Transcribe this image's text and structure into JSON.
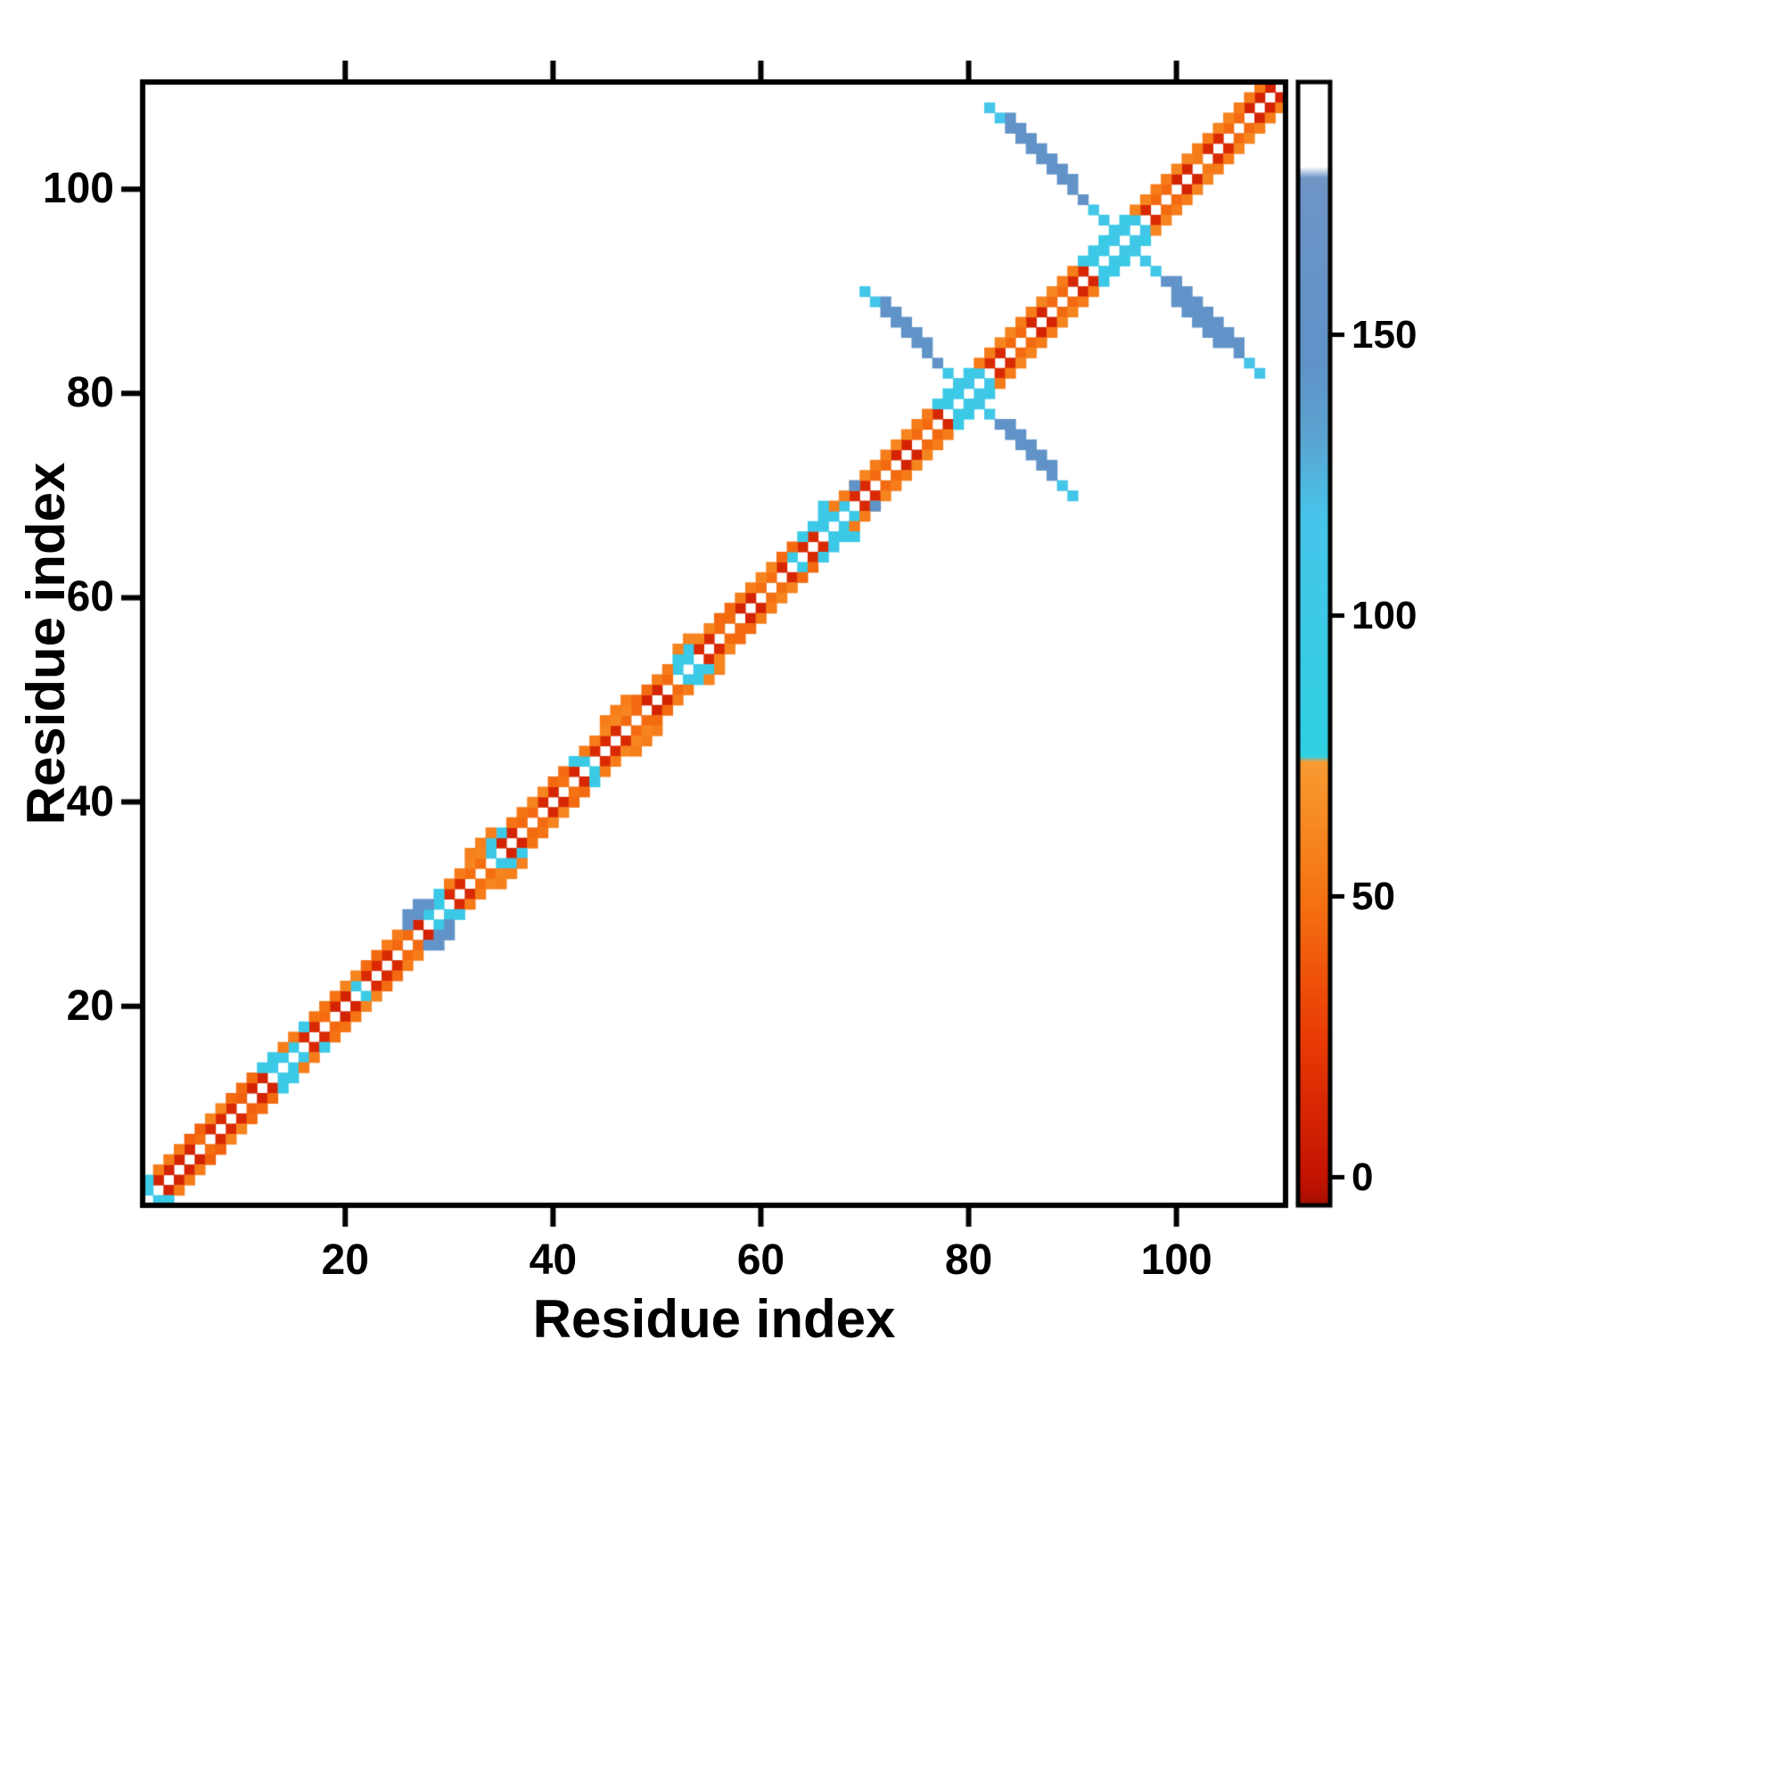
{
  "chart_data": {
    "type": "heatmap",
    "title": "",
    "xlabel": "Residue index",
    "ylabel": "Residue index",
    "n_residues": 110,
    "x_range": [
      0.5,
      110.5
    ],
    "y_range": [
      0.5,
      110.5
    ],
    "x_ticks": [
      20,
      40,
      60,
      80,
      100
    ],
    "y_ticks": [
      20,
      40,
      60,
      80,
      100
    ],
    "grid": false,
    "background": "#ffffff",
    "frame_color": "#000000",
    "colorbar": {
      "position": "right",
      "range": [
        -5,
        195
      ],
      "ticks": [
        0,
        50,
        100,
        150
      ],
      "stops": [
        [
          -5,
          "#a50f01"
        ],
        [
          0,
          "#c41301"
        ],
        [
          25,
          "#ea3b05"
        ],
        [
          50,
          "#f57312"
        ],
        [
          74,
          "#f89b32"
        ],
        [
          75,
          "#2fd0e2"
        ],
        [
          118,
          "#46c4ea"
        ],
        [
          132,
          "#5ba3d0"
        ],
        [
          145,
          "#5f93c8"
        ],
        [
          178,
          "#6f94c6"
        ],
        [
          180,
          "#ffffff"
        ],
        [
          195,
          "#ffffff"
        ]
      ]
    },
    "cells": {
      "comment": "diag: [i0,i1,offset,value] cells (i,i+offset) mirrored; anti: [sum,i0,i1,value] cells (i,sum-i); points: [i,j,value]; diagonal i==j is NA/white",
      "diag": [
        [
          1,
          1,
          1,
          105
        ],
        [
          2,
          5,
          1,
          10
        ],
        [
          6,
          6,
          1,
          48
        ],
        [
          7,
          9,
          1,
          14
        ],
        [
          10,
          10,
          1,
          42
        ],
        [
          11,
          12,
          1,
          10
        ],
        [
          13,
          15,
          1,
          100
        ],
        [
          16,
          17,
          1,
          14
        ],
        [
          18,
          18,
          1,
          46
        ],
        [
          19,
          20,
          1,
          10
        ],
        [
          21,
          21,
          1,
          98
        ],
        [
          22,
          24,
          1,
          14
        ],
        [
          25,
          26,
          1,
          46
        ],
        [
          27,
          27,
          1,
          10
        ],
        [
          28,
          29,
          1,
          96
        ],
        [
          30,
          31,
          1,
          14
        ],
        [
          32,
          33,
          1,
          48
        ],
        [
          34,
          34,
          1,
          100
        ],
        [
          35,
          36,
          1,
          10
        ],
        [
          37,
          38,
          1,
          46
        ],
        [
          39,
          40,
          1,
          12
        ],
        [
          41,
          41,
          1,
          50
        ],
        [
          42,
          42,
          1,
          12
        ],
        [
          43,
          43,
          1,
          96
        ],
        [
          44,
          46,
          1,
          14
        ],
        [
          47,
          48,
          1,
          46
        ],
        [
          49,
          50,
          1,
          10
        ],
        [
          51,
          51,
          1,
          46
        ],
        [
          52,
          53,
          1,
          100
        ],
        [
          54,
          55,
          1,
          14
        ],
        [
          56,
          57,
          1,
          46
        ],
        [
          58,
          59,
          1,
          10
        ],
        [
          60,
          61,
          1,
          48
        ],
        [
          62,
          62,
          1,
          12
        ],
        [
          63,
          63,
          1,
          96
        ],
        [
          64,
          65,
          1,
          14
        ],
        [
          66,
          68,
          1,
          100
        ],
        [
          69,
          70,
          1,
          14
        ],
        [
          71,
          72,
          1,
          46
        ],
        [
          73,
          74,
          1,
          10
        ],
        [
          75,
          76,
          1,
          46
        ],
        [
          77,
          77,
          1,
          12
        ],
        [
          78,
          79,
          1,
          100
        ],
        [
          80,
          81,
          1,
          106
        ],
        [
          82,
          83,
          1,
          14
        ],
        [
          84,
          85,
          1,
          46
        ],
        [
          86,
          87,
          1,
          10
        ],
        [
          88,
          89,
          1,
          46
        ],
        [
          90,
          91,
          1,
          12
        ],
        [
          92,
          93,
          1,
          100
        ],
        [
          94,
          96,
          1,
          106
        ],
        [
          97,
          97,
          1,
          14
        ],
        [
          98,
          99,
          1,
          46
        ],
        [
          100,
          101,
          1,
          10
        ],
        [
          102,
          102,
          1,
          55
        ],
        [
          103,
          104,
          1,
          14
        ],
        [
          105,
          106,
          1,
          46
        ],
        [
          107,
          109,
          1,
          10
        ],
        [
          1,
          1,
          2,
          95
        ],
        [
          2,
          4,
          2,
          55
        ],
        [
          5,
          6,
          2,
          42
        ],
        [
          7,
          8,
          2,
          60
        ],
        [
          9,
          11,
          2,
          46
        ],
        [
          12,
          13,
          2,
          95
        ],
        [
          14,
          15,
          2,
          55
        ],
        [
          16,
          16,
          2,
          100
        ],
        [
          17,
          19,
          2,
          50
        ],
        [
          20,
          21,
          2,
          60
        ],
        [
          22,
          23,
          2,
          46
        ],
        [
          24,
          25,
          2,
          55
        ],
        [
          26,
          28,
          2,
          152
        ],
        [
          29,
          29,
          2,
          100
        ],
        [
          30,
          31,
          2,
          55
        ],
        [
          32,
          33,
          2,
          60
        ],
        [
          34,
          35,
          2,
          100
        ],
        [
          36,
          37,
          2,
          50
        ],
        [
          38,
          39,
          2,
          60
        ],
        [
          40,
          41,
          2,
          46
        ],
        [
          42,
          42,
          2,
          95
        ],
        [
          43,
          44,
          2,
          55
        ],
        [
          45,
          47,
          2,
          60
        ],
        [
          48,
          49,
          2,
          46
        ],
        [
          50,
          51,
          2,
          55
        ],
        [
          52,
          53,
          2,
          95
        ],
        [
          54,
          55,
          2,
          60
        ],
        [
          56,
          57,
          2,
          46
        ],
        [
          58,
          59,
          2,
          55
        ],
        [
          60,
          61,
          2,
          60
        ],
        [
          62,
          63,
          2,
          46
        ],
        [
          64,
          64,
          2,
          95
        ],
        [
          65,
          66,
          2,
          100
        ],
        [
          67,
          68,
          2,
          55
        ],
        [
          69,
          70,
          2,
          60
        ],
        [
          71,
          72,
          2,
          55
        ],
        [
          73,
          74,
          2,
          60
        ],
        [
          75,
          76,
          2,
          55
        ],
        [
          77,
          78,
          2,
          95
        ],
        [
          79,
          80,
          2,
          100
        ],
        [
          81,
          82,
          2,
          55
        ],
        [
          83,
          84,
          2,
          60
        ],
        [
          85,
          86,
          2,
          55
        ],
        [
          87,
          88,
          2,
          60
        ],
        [
          89,
          90,
          2,
          55
        ],
        [
          91,
          92,
          2,
          100
        ],
        [
          93,
          95,
          2,
          96
        ],
        [
          96,
          97,
          2,
          60
        ],
        [
          98,
          99,
          2,
          55
        ],
        [
          100,
          101,
          2,
          60
        ],
        [
          102,
          103,
          2,
          55
        ],
        [
          104,
          105,
          2,
          60
        ],
        [
          106,
          108,
          2,
          55
        ],
        [
          26,
          27,
          3,
          152
        ],
        [
          32,
          34,
          3,
          58
        ],
        [
          45,
          47,
          3,
          56
        ],
        [
          52,
          53,
          3,
          60
        ],
        [
          66,
          66,
          3,
          100
        ]
      ],
      "anti": [
        [
          160,
          70,
          71,
          110
        ],
        [
          160,
          72,
          77,
          150
        ],
        [
          160,
          78,
          82,
          106
        ],
        [
          160,
          83,
          88,
          150
        ],
        [
          160,
          89,
          90,
          110
        ],
        [
          161,
          72,
          76,
          148
        ],
        [
          161,
          84,
          88,
          148
        ],
        [
          190,
          82,
          83,
          116
        ],
        [
          190,
          84,
          91,
          152
        ],
        [
          190,
          92,
          98,
          108
        ],
        [
          190,
          99,
          106,
          152
        ],
        [
          190,
          107,
          108,
          118
        ],
        [
          191,
          84,
          90,
          150
        ],
        [
          191,
          100,
          106,
          150
        ],
        [
          189,
          100,
          104,
          152
        ]
      ],
      "points": [
        [
          69,
          71,
          148
        ]
      ]
    }
  }
}
